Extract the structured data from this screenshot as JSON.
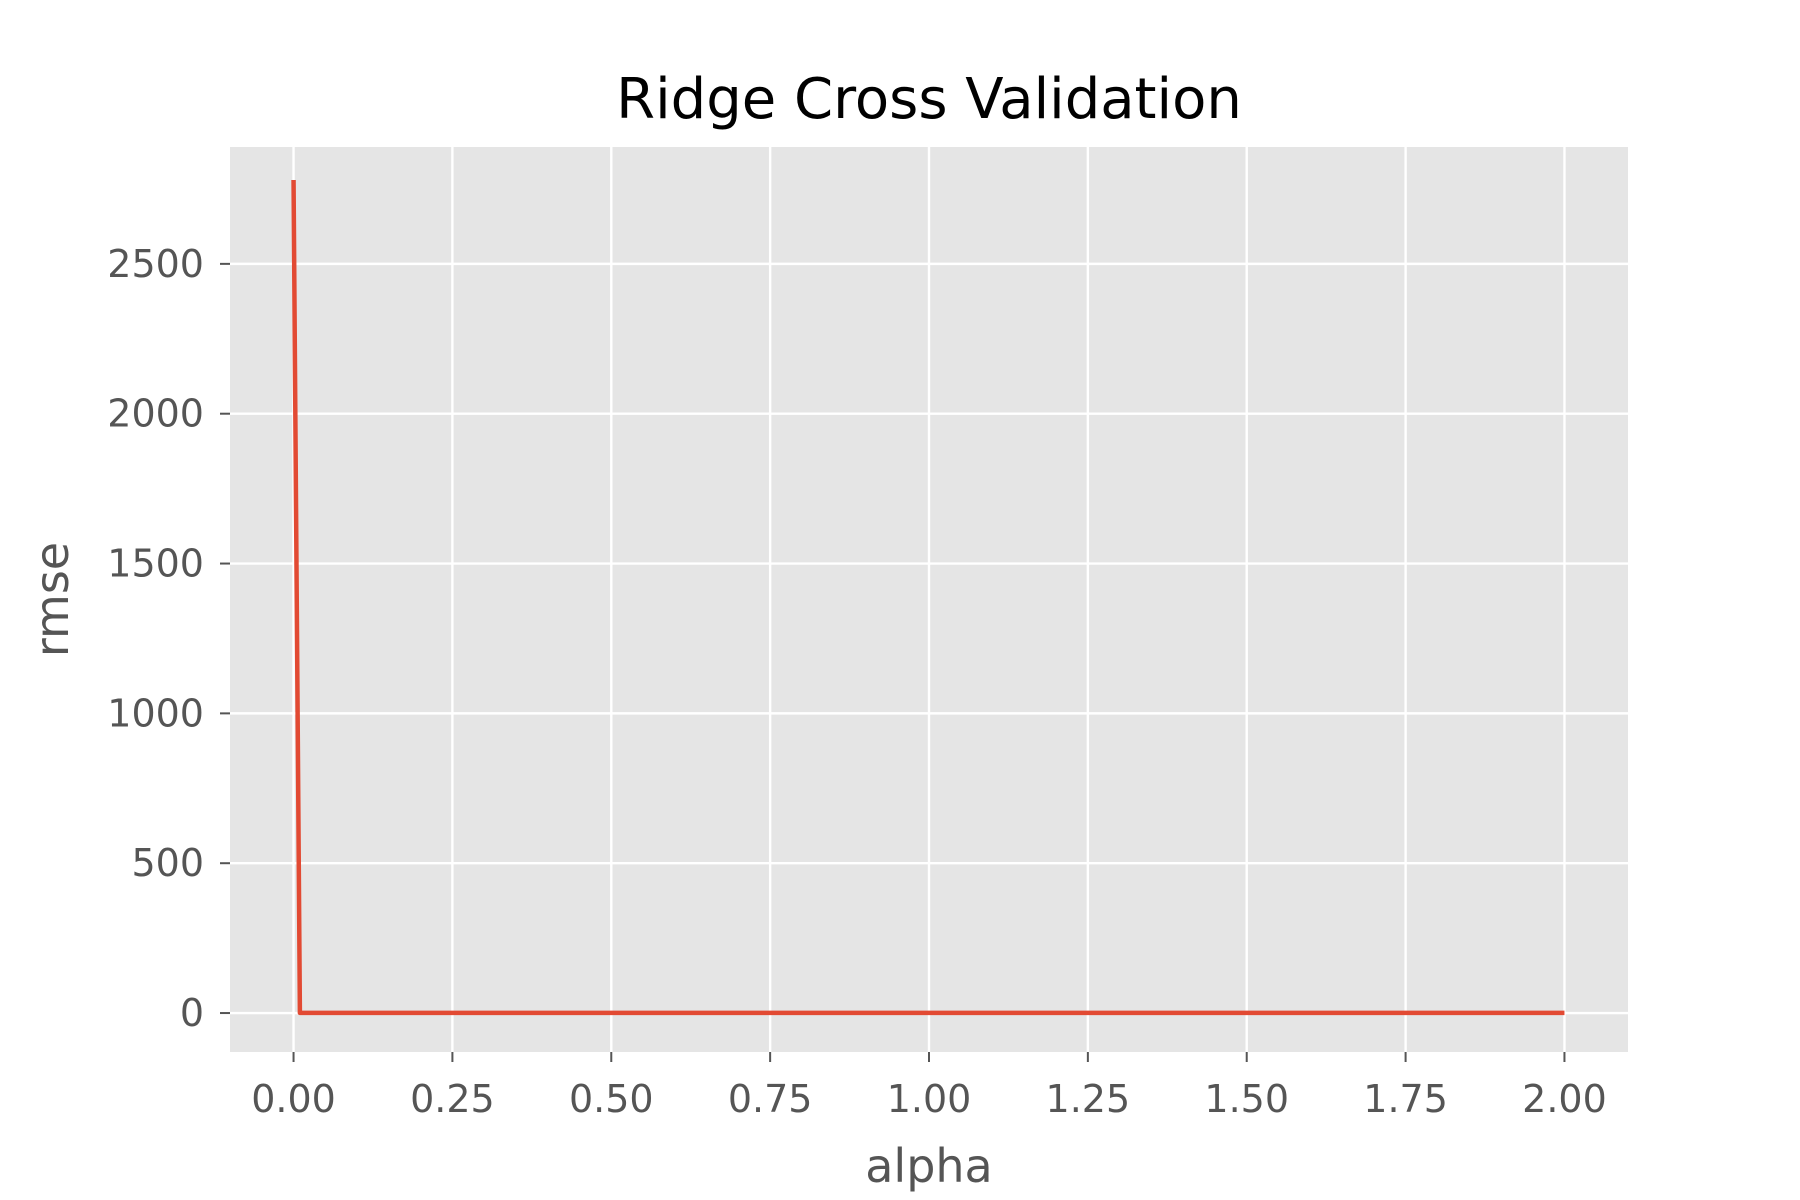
{
  "chart_data": {
    "type": "line",
    "title": "Ridge Cross Validation",
    "xlabel": "alpha",
    "ylabel": "rmse",
    "xlim": [
      -0.1,
      2.1
    ],
    "ylim": [
      -130,
      2890
    ],
    "xticks": [
      0.0,
      0.25,
      0.5,
      0.75,
      1.0,
      1.25,
      1.5,
      1.75,
      2.0
    ],
    "xtick_labels": [
      "0.00",
      "0.25",
      "0.50",
      "0.75",
      "1.00",
      "1.25",
      "1.50",
      "1.75",
      "2.00"
    ],
    "yticks": [
      0,
      500,
      1000,
      1500,
      2000,
      2500
    ],
    "ytick_labels": [
      "0",
      "500",
      "1000",
      "1500",
      "2000",
      "2500"
    ],
    "grid": true,
    "series": [
      {
        "color": "#E24A33",
        "x": [
          0.0,
          0.01,
          0.05,
          0.1,
          0.25,
          0.5,
          0.75,
          1.0,
          1.25,
          1.5,
          1.75,
          2.0
        ],
        "y": [
          2780,
          0.5,
          0.45,
          0.45,
          0.45,
          0.45,
          0.45,
          0.45,
          0.45,
          0.45,
          0.45,
          0.45
        ]
      }
    ],
    "colors": {
      "background": "#E5E5E5",
      "grid": "#FFFFFF",
      "text": "#555555"
    }
  }
}
